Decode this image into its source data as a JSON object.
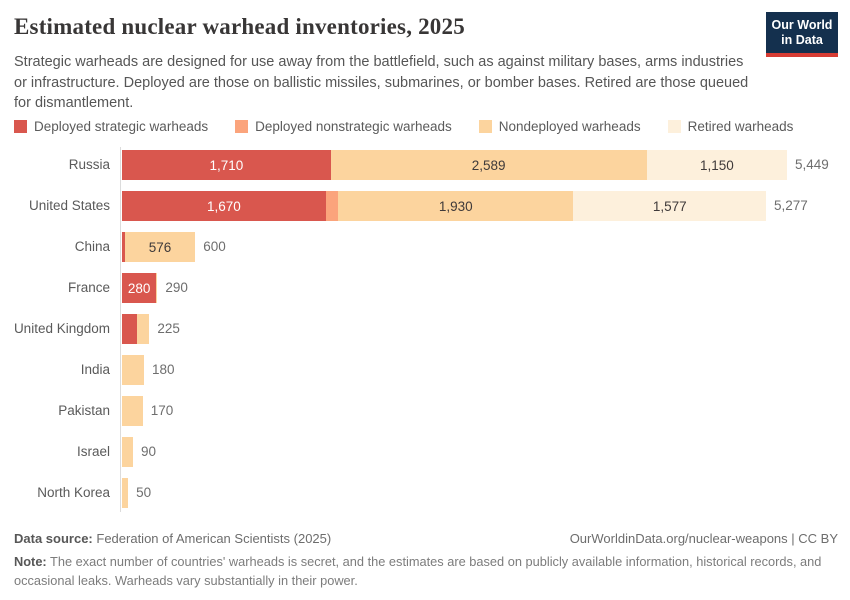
{
  "header": {
    "title": "Estimated nuclear warhead inventories, 2025",
    "subtitle": "Strategic warheads are designed for use away from the battlefield, such as against military bases, arms industries or infrastructure. Deployed are those on ballistic missiles, submarines, or bomber bases. Retired are those queued for dismantlement.",
    "logo_line1": "Our World",
    "logo_line2": "in Data",
    "logo_bg_color": "#14304e",
    "logo_accent_color": "#d73c34"
  },
  "chart_data": {
    "type": "bar",
    "orientation": "horizontal",
    "stacked": true,
    "title": "Estimated nuclear warhead inventories, 2025",
    "categories": [
      "Russia",
      "United States",
      "China",
      "France",
      "United Kingdom",
      "India",
      "Pakistan",
      "Israel",
      "North Korea"
    ],
    "series": [
      {
        "name": "Deployed strategic warheads",
        "color": "#d9574e",
        "label_color": "#ffffff",
        "values": [
          1710,
          1670,
          24,
          280,
          120,
          0,
          0,
          0,
          0
        ]
      },
      {
        "name": "Deployed nonstrategic warheads",
        "color": "#fba47c",
        "label_color": "#3f3a3a",
        "values": [
          0,
          100,
          0,
          0,
          0,
          0,
          0,
          0,
          0
        ]
      },
      {
        "name": "Nondeployed warheads",
        "color": "#fcd49e",
        "label_color": "#3f3a3a",
        "values": [
          2589,
          1930,
          576,
          10,
          105,
          180,
          170,
          90,
          50
        ]
      },
      {
        "name": "Retired warheads",
        "color": "#fdf0dc",
        "label_color": "#3f3a3a",
        "values": [
          1150,
          1577,
          0,
          0,
          0,
          0,
          0,
          0,
          0
        ]
      }
    ],
    "totals": [
      5449,
      5277,
      600,
      290,
      225,
      180,
      170,
      90,
      50
    ],
    "xlim": [
      0,
      5449
    ],
    "legend_position": "top",
    "grid": false
  },
  "footer": {
    "source_label": "Data source:",
    "source_value": "Federation of American Scientists (2025)",
    "link": "OurWorldinData.org/nuclear-weapons | CC BY",
    "note_label": "Note:",
    "note_text": "The exact number of countries' warheads is secret, and the estimates are based on publicly available information, historical records, and occasional leaks. Warheads vary substantially in their power."
  }
}
